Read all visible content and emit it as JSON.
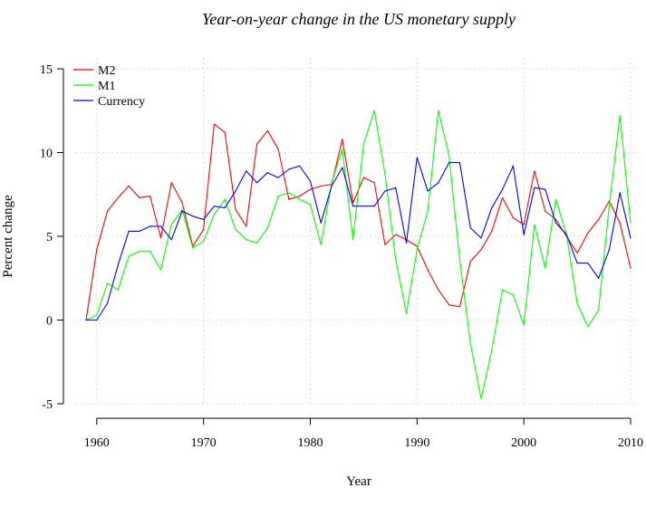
{
  "chart_data": {
    "type": "line",
    "title": "Year-on-year change in the US monetary supply",
    "xlabel": "Year",
    "ylabel": "Percent change",
    "xlim": [
      1959,
      2010
    ],
    "ylim": [
      -5,
      15
    ],
    "x_ticks": [
      1960,
      1970,
      1980,
      1990,
      2000,
      2010
    ],
    "y_ticks": [
      -5,
      0,
      5,
      10,
      15
    ],
    "grid": true,
    "legend_position": "top-left",
    "x": [
      1959,
      1960,
      1961,
      1962,
      1963,
      1964,
      1965,
      1966,
      1967,
      1968,
      1969,
      1970,
      1971,
      1972,
      1973,
      1974,
      1975,
      1976,
      1977,
      1978,
      1979,
      1980,
      1981,
      1982,
      1983,
      1984,
      1985,
      1986,
      1987,
      1988,
      1989,
      1990,
      1991,
      1992,
      1993,
      1994,
      1995,
      1996,
      1997,
      1998,
      1999,
      2000,
      2001,
      2002,
      2003,
      2004,
      2005,
      2006,
      2007,
      2008,
      2009,
      2010
    ],
    "series": [
      {
        "name": "M2",
        "color": "#ff0000",
        "values": [
          0.0,
          4.2,
          6.5,
          7.3,
          8.0,
          7.3,
          7.4,
          4.9,
          8.2,
          7.0,
          4.4,
          5.4,
          11.7,
          11.2,
          6.6,
          5.6,
          10.5,
          11.3,
          10.2,
          7.2,
          7.4,
          7.8,
          8.0,
          8.1,
          10.8,
          7.0,
          8.5,
          8.2,
          4.5,
          5.1,
          4.8,
          4.4,
          3.0,
          1.8,
          0.9,
          0.8,
          3.5,
          4.2,
          5.3,
          7.3,
          6.1,
          5.7,
          8.9,
          6.5,
          6.0,
          5.0,
          4.0,
          5.2,
          6.0,
          7.1,
          5.8,
          3.1
        ]
      },
      {
        "name": "M1",
        "color": "#00ff00",
        "values": [
          0.0,
          0.3,
          2.2,
          1.8,
          3.8,
          4.1,
          4.1,
          3.0,
          5.7,
          6.6,
          4.3,
          4.7,
          6.3,
          7.2,
          5.4,
          4.8,
          4.6,
          5.5,
          7.4,
          7.6,
          7.2,
          6.9,
          4.5,
          8.2,
          10.2,
          4.8,
          10.5,
          12.5,
          8.7,
          3.6,
          0.4,
          4.2,
          6.5,
          12.5,
          9.8,
          3.6,
          -1.4,
          -4.7,
          -1.8,
          1.8,
          1.5,
          -0.3,
          5.7,
          3.1,
          7.2,
          5.1,
          1.0,
          -0.4,
          0.6,
          6.8,
          12.2,
          5.8
        ]
      },
      {
        "name": "Currency",
        "color": "#0000ff",
        "values": [
          0.0,
          0.0,
          1.0,
          3.3,
          5.3,
          5.3,
          5.6,
          5.6,
          4.8,
          6.5,
          6.2,
          6.0,
          6.8,
          6.7,
          7.7,
          8.9,
          8.2,
          8.8,
          8.5,
          9.0,
          9.2,
          8.3,
          5.8,
          8.0,
          9.1,
          6.8,
          6.8,
          6.8,
          7.7,
          7.9,
          4.6,
          9.7,
          7.7,
          8.2,
          9.4,
          9.4,
          5.5,
          4.9,
          6.7,
          7.8,
          9.2,
          5.1,
          7.9,
          7.8,
          5.8,
          5.1,
          3.4,
          3.4,
          2.5,
          4.2,
          7.6,
          4.9
        ]
      }
    ]
  }
}
